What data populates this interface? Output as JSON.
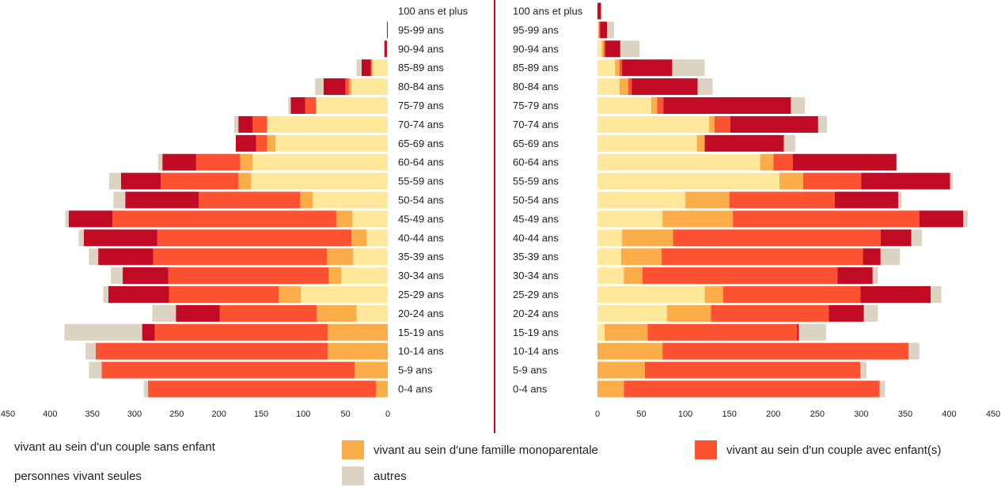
{
  "chart_data": {
    "type": "bar",
    "categories": [
      "100 ans et plus",
      "95-99 ans",
      "90-94 ans",
      "85-89 ans",
      "80-84 ans",
      "75-79 ans",
      "70-74 ans",
      "65-69 ans",
      "60-64 ans",
      "55-59 ans",
      "50-54 ans",
      "45-49 ans",
      "40-44 ans",
      "35-39 ans",
      "30-34 ans",
      "25-29 ans",
      "20-24 ans",
      "15-19 ans",
      "10-14 ans",
      "5-9 ans",
      "0-4 ans"
    ],
    "stack_order": [
      "couple_sans_enfant",
      "monoparentale",
      "couple_avec_enfant",
      "seules",
      "autres"
    ],
    "series_colors": {
      "couple_sans_enfant": "#FFE89C",
      "monoparentale": "#FBAD4A",
      "couple_avec_enfant": "#FD5231",
      "seules": "#C10A23",
      "autres": "#DDD3C2"
    },
    "left": {
      "xlim": [
        0,
        450
      ],
      "ticks": [
        "450",
        "400",
        "350",
        "300",
        "250",
        "200",
        "150",
        "100",
        "50",
        "0"
      ],
      "tick_values": [
        450,
        400,
        350,
        300,
        250,
        200,
        150,
        100,
        50,
        0
      ],
      "series": [
        {
          "key": "couple_sans_enfant",
          "values": [
            0,
            0,
            1,
            18,
            43,
            85,
            143,
            133,
            160,
            162,
            89,
            42,
            25,
            41,
            55,
            103,
            37,
            0,
            0,
            0,
            0
          ]
        },
        {
          "key": "monoparentale",
          "values": [
            0,
            0,
            0,
            1,
            3,
            0,
            0,
            10,
            15,
            15,
            15,
            19,
            18,
            31,
            15,
            26,
            47,
            71,
            71,
            39,
            14
          ]
        },
        {
          "key": "couple_avec_enfant",
          "values": [
            0,
            0,
            0,
            1,
            4,
            13,
            17,
            13,
            52,
            92,
            120,
            265,
            230,
            206,
            190,
            130,
            115,
            205,
            275,
            300,
            270
          ]
        },
        {
          "key": "seules",
          "values": [
            0,
            1,
            3,
            11,
            26,
            17,
            17,
            24,
            40,
            47,
            87,
            52,
            87,
            65,
            54,
            72,
            52,
            15,
            0,
            0,
            0
          ]
        },
        {
          "key": "autres",
          "values": [
            0,
            0,
            0,
            6,
            10,
            3,
            5,
            0,
            5,
            14,
            14,
            4,
            6,
            11,
            14,
            6,
            28,
            92,
            12,
            15,
            5
          ]
        }
      ]
    },
    "right": {
      "xlim": [
        0,
        450
      ],
      "ticks": [
        "0",
        "50",
        "100",
        "150",
        "200",
        "250",
        "300",
        "350",
        "400",
        "450"
      ],
      "tick_values": [
        0,
        50,
        100,
        150,
        200,
        250,
        300,
        350,
        400,
        450
      ],
      "series": [
        {
          "key": "couple_sans_enfant",
          "values": [
            0,
            1,
            5,
            20,
            25,
            61,
            127,
            113,
            185,
            207,
            100,
            74,
            28,
            27,
            30,
            122,
            79,
            8,
            0,
            0,
            0
          ]
        },
        {
          "key": "monoparentale",
          "values": [
            0,
            1,
            2,
            5,
            10,
            7,
            6,
            9,
            15,
            27,
            50,
            80,
            58,
            46,
            21,
            21,
            50,
            49,
            74,
            54,
            30
          ]
        },
        {
          "key": "couple_avec_enfant",
          "values": [
            0,
            1,
            2,
            3,
            4,
            7,
            18,
            0,
            22,
            66,
            120,
            212,
            236,
            229,
            222,
            156,
            134,
            170,
            280,
            245,
            291
          ]
        },
        {
          "key": "seules",
          "values": [
            4,
            8,
            17,
            57,
            75,
            145,
            100,
            90,
            118,
            101,
            72,
            50,
            35,
            20,
            40,
            80,
            40,
            2,
            0,
            0,
            0
          ]
        },
        {
          "key": "autres",
          "values": [
            1,
            8,
            22,
            37,
            17,
            16,
            10,
            13,
            0,
            3,
            4,
            5,
            12,
            22,
            6,
            12,
            16,
            31,
            12,
            7,
            6
          ]
        }
      ]
    },
    "legend": [
      {
        "key": "couple_sans_enfant",
        "label": "vivant au sein d'un couple sans enfant"
      },
      {
        "key": "monoparentale",
        "label": "vivant au sein d'une famille monoparentale"
      },
      {
        "key": "couple_avec_enfant",
        "label": "vivant au sein d'un couple avec enfant(s)"
      },
      {
        "key": "seules",
        "label": "personnes vivant seules"
      },
      {
        "key": "autres",
        "label": "autres"
      }
    ],
    "divider_color": "#C10A23",
    "grid": false
  }
}
